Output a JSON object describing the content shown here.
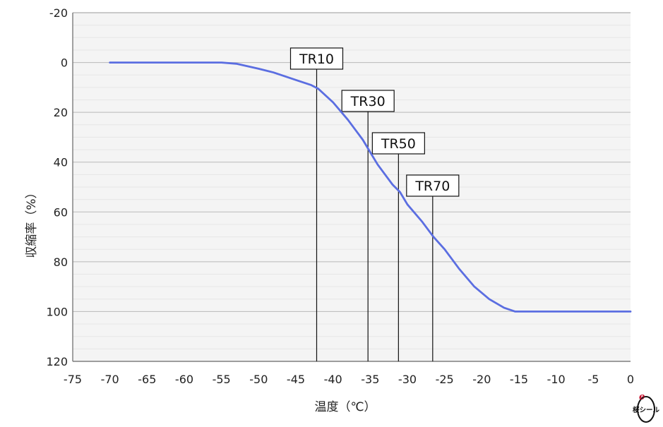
{
  "chart_data": {
    "type": "line",
    "xlabel": "温度（℃）",
    "ylabel": "収縮率（%）",
    "xlim": [
      -75,
      0
    ],
    "ylim": [
      -20,
      120
    ],
    "y_inverted": true,
    "grid": true,
    "x_ticks": [
      -75,
      -70,
      -65,
      -60,
      -55,
      -50,
      -45,
      -40,
      -35,
      -30,
      -25,
      -20,
      -15,
      -10,
      -5,
      0
    ],
    "y_ticks": [
      -20,
      0,
      20,
      40,
      60,
      80,
      100,
      120
    ],
    "series": [
      {
        "color": "#5b6ee1",
        "x": [
          -70,
          -65,
          -60,
          -55,
          -53,
          -50,
          -48,
          -45,
          -43,
          -42,
          -40,
          -38,
          -36,
          -35,
          -34,
          -32,
          -31,
          -30,
          -28,
          -26.5,
          -25,
          -23,
          -21,
          -19,
          -17,
          -15.5,
          -15,
          -10,
          -5,
          0
        ],
        "y": [
          0,
          0,
          0,
          0,
          0.5,
          2.5,
          4,
          7,
          9,
          10.5,
          16,
          23,
          31,
          36,
          41,
          49,
          52,
          57,
          64,
          70,
          75,
          83,
          90,
          95,
          98.5,
          100,
          100,
          100,
          100,
          100
        ]
      }
    ],
    "annotations": [
      {
        "label": "TR10",
        "x": -42.2,
        "y": 10
      },
      {
        "label": "TR30",
        "x": -35.3,
        "y": 30
      },
      {
        "label": "TR50",
        "x": -31.2,
        "y": 50
      },
      {
        "label": "TR70",
        "x": -26.6,
        "y": 70
      }
    ]
  },
  "logo": {
    "name": "桜シール",
    "text": "桜シール"
  }
}
